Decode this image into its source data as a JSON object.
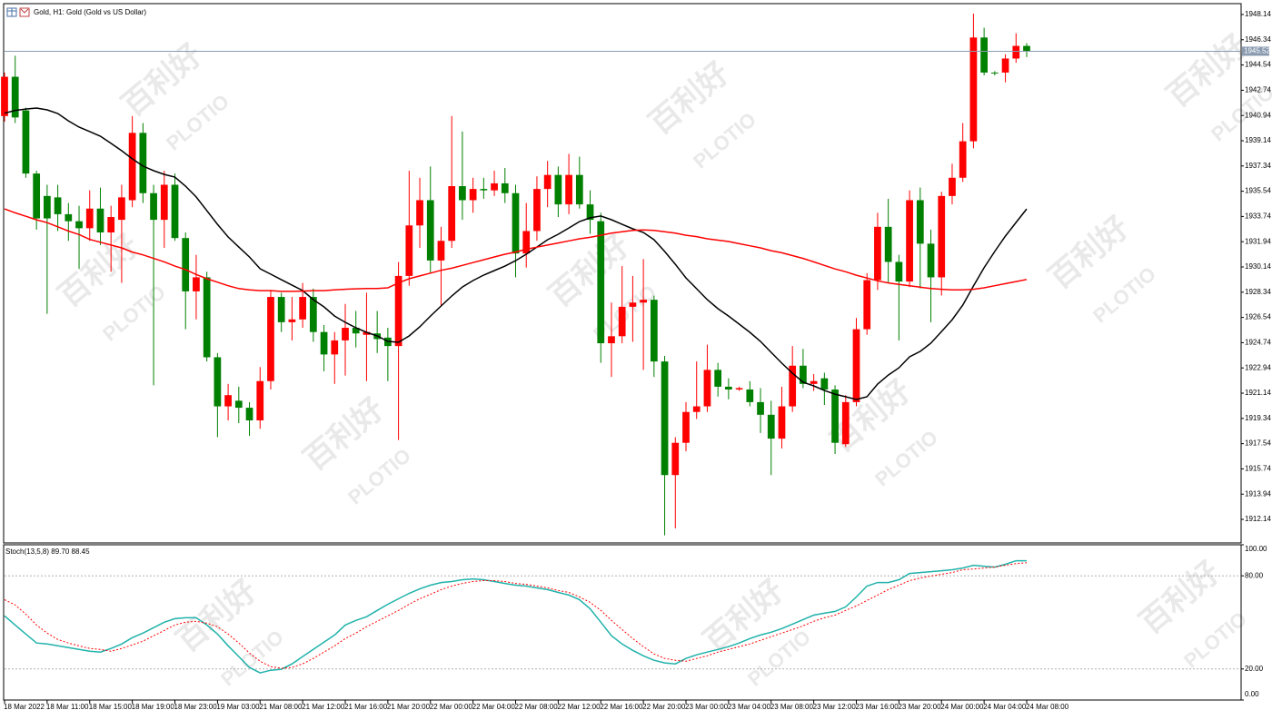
{
  "chart_data": [
    {
      "type": "candlestick",
      "title": "Gold, H1:  Gold (Gold vs US Dollar)",
      "watermark": [
        "百利好",
        "PLOTIO"
      ],
      "categories": [
        "18 Mar 2022",
        null,
        null,
        null,
        "18 Mar 11:00",
        null,
        null,
        null,
        "18 Mar 15:00",
        null,
        null,
        null,
        "18 Mar 19:00",
        null,
        null,
        null,
        "18 Mar 23:00",
        null,
        null,
        null,
        "19 Mar 03:00",
        null,
        null,
        null,
        "21 Mar 08:00",
        null,
        null,
        null,
        "21 Mar 12:00",
        null,
        null,
        null,
        "21 Mar 16:00",
        null,
        null,
        null,
        "21 Mar 20:00",
        null,
        null,
        null,
        "22 Mar 00:00",
        null,
        null,
        null,
        "22 Mar 04:00",
        null,
        null,
        null,
        "22 Mar 08:00",
        null,
        null,
        null,
        "22 Mar 12:00",
        null,
        null,
        null,
        "22 Mar 16:00",
        null,
        null,
        null,
        "22 Mar 20:00",
        null,
        null,
        null,
        "23 Mar 00:00",
        null,
        null,
        null,
        "23 Mar 04:00",
        null,
        null,
        null,
        "23 Mar 08:00",
        null,
        null,
        null,
        "23 Mar 12:00",
        null,
        null,
        null,
        "23 Mar 16:00",
        null,
        null,
        null,
        "23 Mar 20:00",
        null,
        null,
        null,
        "24 Mar 00:00",
        null,
        null,
        null,
        "24 Mar 04:00",
        null,
        null,
        null,
        "24 Mar 08:00"
      ],
      "open": [
        1940.9,
        1943.7,
        1941.3,
        1936.8,
        1935.2,
        1935.1,
        1933.9,
        1933.4,
        1932.9,
        1934.3,
        1932.6,
        1933.5,
        1934.9,
        1939.7,
        1935.4,
        1933.5,
        1936.0,
        1932.2,
        1928.4,
        1929.4,
        1923.7,
        1920.2,
        1920.6,
        1920.1,
        1919.2,
        1922.0,
        1928.0,
        1926.2,
        1926.4,
        1928.0,
        1925.5,
        1923.9,
        1924.9,
        1925.8,
        1925.3,
        1925.4,
        1925.1,
        1924.5,
        1929.5,
        1933.1,
        1934.9,
        1930.6,
        1932.0,
        1935.9,
        1934.9,
        1935.7,
        1935.6,
        1936.1,
        1935.4,
        1931.1,
        1932.7,
        1935.7,
        1936.7,
        1934.6,
        1936.7,
        1934.6,
        1933.4,
        1924.7,
        1925.2,
        1927.3,
        1927.6,
        1927.8,
        1923.4,
        1915.3,
        1917.6,
        1919.8,
        1920.2,
        1922.8,
        1921.6,
        1921.4,
        1921.4,
        1920.5,
        1919.6,
        1917.9,
        1920.2,
        1923.1,
        1921.8,
        1922.2,
        1921.4,
        1917.5,
        1920.5,
        1925.7,
        1929.2,
        1933.0,
        1930.5,
        1929.1,
        1934.9,
        1931.8,
        1929.4,
        1935.2,
        1936.5,
        1939.1,
        1946.5,
        1944.0,
        1944.0,
        1945.0,
        1945.9
      ],
      "high": [
        1944.0,
        1945.2,
        1941.5,
        1937.0,
        1936.0,
        1936.0,
        1934.7,
        1934.5,
        1935.6,
        1935.8,
        1934.5,
        1936.0,
        1940.9,
        1940.4,
        1936.0,
        1937.0,
        1936.8,
        1932.6,
        1931.0,
        1929.8,
        1924.0,
        1921.8,
        1921.6,
        1920.5,
        1923.0,
        1928.5,
        1928.3,
        1928.0,
        1929.0,
        1928.6,
        1926.0,
        1925.5,
        1927.5,
        1927.0,
        1928.3,
        1927.0,
        1925.8,
        1930.5,
        1937.0,
        1936.5,
        1937.3,
        1933.0,
        1940.9,
        1939.8,
        1936.5,
        1936.5,
        1937.0,
        1937.2,
        1936.0,
        1934.7,
        1936.6,
        1937.7,
        1937.3,
        1938.2,
        1938.0,
        1935.6,
        1934.0,
        1927.6,
        1930.2,
        1929.5,
        1930.7,
        1928.1,
        1923.8,
        1918.0,
        1920.5,
        1923.4,
        1924.6,
        1923.3,
        1922.2,
        1921.6,
        1922.0,
        1921.5,
        1920.6,
        1921.6,
        1924.5,
        1924.3,
        1922.5,
        1922.6,
        1921.7,
        1921.0,
        1926.5,
        1929.7,
        1934.0,
        1935.0,
        1931.0,
        1935.6,
        1935.8,
        1932.8,
        1935.5,
        1937.5,
        1940.4,
        1948.2,
        1947.2,
        1944.1,
        1945.3,
        1946.8,
        1946.1
      ],
      "low": [
        1940.5,
        1940.4,
        1936.5,
        1932.8,
        1926.8,
        1932.7,
        1932.0,
        1930.0,
        1932.0,
        1931.7,
        1929.8,
        1929.0,
        1934.4,
        1934.7,
        1921.7,
        1931.5,
        1932.0,
        1925.7,
        1926.4,
        1923.4,
        1918.0,
        1919.2,
        1919.0,
        1918.1,
        1918.6,
        1921.4,
        1925.5,
        1924.9,
        1925.8,
        1924.8,
        1922.7,
        1921.8,
        1922.4,
        1924.4,
        1922.0,
        1924.0,
        1922.0,
        1917.8,
        1928.8,
        1931.5,
        1929.7,
        1927.4,
        1931.5,
        1933.5,
        1934.0,
        1935.0,
        1935.2,
        1934.7,
        1929.4,
        1930.1,
        1932.0,
        1934.4,
        1933.7,
        1933.9,
        1934.3,
        1932.5,
        1923.3,
        1922.3,
        1924.7,
        1924.8,
        1922.8,
        1922.3,
        1911.0,
        1911.5,
        1917.0,
        1919.3,
        1919.8,
        1920.9,
        1920.7,
        1921.3,
        1920.2,
        1918.3,
        1915.3,
        1917.2,
        1919.8,
        1921.5,
        1921.3,
        1920.3,
        1916.8,
        1917.3,
        1920.2,
        1925.3,
        1928.5,
        1929.0,
        1924.9,
        1928.7,
        1928.6,
        1926.2,
        1928.1,
        1934.6,
        1936.2,
        1938.6,
        1943.8,
        1943.8,
        1943.3,
        1944.7,
        1945.1
      ],
      "close": [
        1943.7,
        1940.8,
        1936.8,
        1933.6,
        1933.6,
        1933.9,
        1933.4,
        1932.9,
        1934.3,
        1932.6,
        1933.7,
        1935.1,
        1939.7,
        1935.4,
        1933.5,
        1936.0,
        1932.2,
        1928.4,
        1929.4,
        1923.7,
        1920.2,
        1921.0,
        1920.1,
        1919.2,
        1922.0,
        1928.0,
        1926.2,
        1926.4,
        1928.0,
        1925.5,
        1923.9,
        1924.9,
        1925.8,
        1925.4,
        1925.5,
        1925.0,
        1924.5,
        1929.5,
        1933.1,
        1934.9,
        1930.6,
        1932.0,
        1935.9,
        1934.9,
        1935.7,
        1935.6,
        1936.1,
        1935.4,
        1931.1,
        1932.7,
        1935.7,
        1936.7,
        1934.6,
        1936.7,
        1934.6,
        1933.5,
        1924.7,
        1925.2,
        1927.3,
        1927.6,
        1927.8,
        1923.4,
        1915.3,
        1917.6,
        1919.8,
        1920.2,
        1922.8,
        1921.6,
        1921.4,
        1921.5,
        1920.5,
        1919.6,
        1917.9,
        1920.2,
        1923.1,
        1921.8,
        1922.0,
        1921.4,
        1917.6,
        1920.5,
        1925.7,
        1929.2,
        1933.0,
        1930.5,
        1929.1,
        1934.9,
        1931.8,
        1929.4,
        1935.2,
        1936.5,
        1939.1,
        1946.5,
        1944.0,
        1943.95,
        1945.0,
        1945.9,
        1945.52
      ],
      "up_color": "#ff0000",
      "down_color": "#008000",
      "series": [
        {
          "color": "#000000",
          "values": [
            1941.1,
            1941.3,
            1941.4,
            1941.47,
            1941.34,
            1941.08,
            1940.56,
            1940.11,
            1939.79,
            1939.46,
            1938.95,
            1938.43,
            1937.85,
            1937.33,
            1937.0,
            1936.74,
            1936.55,
            1935.9,
            1935.13,
            1934.15,
            1933.18,
            1932.28,
            1931.56,
            1930.85,
            1930.01,
            1929.62,
            1929.23,
            1928.84,
            1928.46,
            1927.81,
            1927.29,
            1926.64,
            1926.19,
            1925.8,
            1925.48,
            1925.22,
            1924.83,
            1924.77,
            1925.22,
            1925.87,
            1926.64,
            1927.36,
            1928.07,
            1928.71,
            1929.17,
            1929.56,
            1929.88,
            1930.2,
            1930.59,
            1931.05,
            1931.56,
            1932.08,
            1932.47,
            1932.92,
            1933.38,
            1933.64,
            1933.77,
            1933.51,
            1933.18,
            1932.86,
            1932.6,
            1932.08,
            1931.24,
            1930.33,
            1929.36,
            1928.59,
            1927.81,
            1927.16,
            1926.64,
            1926.06,
            1925.48,
            1924.83,
            1924.05,
            1923.28,
            1922.56,
            1921.92,
            1921.66,
            1921.33,
            1921.07,
            1920.88,
            1920.69,
            1920.88,
            1921.79,
            1922.43,
            1922.95,
            1923.73,
            1924.12,
            1924.7,
            1925.54,
            1926.38,
            1927.42,
            1928.78,
            1930.08,
            1931.24,
            1932.34,
            1933.31,
            1934.28
          ]
        },
        {
          "color": "#ff0000",
          "values": [
            1934.28,
            1934.0,
            1933.75,
            1933.5,
            1933.3,
            1933.0,
            1932.7,
            1932.45,
            1932.1,
            1931.9,
            1931.7,
            1931.5,
            1931.2,
            1931.0,
            1930.75,
            1930.5,
            1930.2,
            1929.95,
            1929.6,
            1929.3,
            1929.05,
            1928.8,
            1928.6,
            1928.5,
            1928.45,
            1928.45,
            1928.4,
            1928.4,
            1928.42,
            1928.45,
            1928.45,
            1928.5,
            1928.55,
            1928.58,
            1928.6,
            1928.6,
            1928.65,
            1929.0,
            1929.3,
            1929.5,
            1929.7,
            1929.9,
            1930.05,
            1930.25,
            1930.45,
            1930.65,
            1930.85,
            1931.05,
            1931.2,
            1931.4,
            1931.55,
            1931.7,
            1931.85,
            1932.0,
            1932.15,
            1932.25,
            1932.4,
            1932.55,
            1932.65,
            1932.75,
            1932.78,
            1932.75,
            1932.65,
            1932.55,
            1932.4,
            1932.3,
            1932.15,
            1932.05,
            1931.95,
            1931.8,
            1931.65,
            1931.5,
            1931.3,
            1931.15,
            1930.95,
            1930.75,
            1930.5,
            1930.25,
            1930.0,
            1929.8,
            1929.55,
            1929.35,
            1929.15,
            1929.0,
            1928.9,
            1928.8,
            1928.7,
            1928.6,
            1928.55,
            1928.5,
            1928.5,
            1928.55,
            1928.65,
            1928.8,
            1928.95,
            1929.1,
            1929.25
          ]
        }
      ],
      "price_line": 1945.52,
      "ylim": [
        1910.46,
        1948.85
      ],
      "yticks": [
        1912.14,
        1913.94,
        1915.74,
        1917.54,
        1919.34,
        1921.14,
        1922.94,
        1924.74,
        1926.54,
        1928.34,
        1930.14,
        1931.94,
        1933.74,
        1935.54,
        1937.34,
        1939.14,
        1940.94,
        1942.74,
        1944.54,
        1946.34,
        1948.14
      ],
      "grid": false
    },
    {
      "type": "line",
      "title": "Stoch(13,5,8) 89.70 88.45",
      "series": [
        {
          "color": "#20b2aa",
          "values": [
            54.2,
            48.3,
            42.5,
            36.7,
            36.1,
            34.9,
            33.8,
            32.6,
            31.4,
            30.9,
            33.2,
            36.1,
            40.2,
            43.1,
            46.6,
            50.1,
            52.4,
            53.0,
            53.0,
            48.3,
            42.5,
            34.9,
            28.0,
            21.0,
            17.5,
            19.2,
            19.8,
            23.3,
            28.0,
            32.6,
            37.3,
            41.9,
            48.3,
            51.3,
            53.6,
            57.7,
            61.7,
            65.2,
            68.7,
            71.6,
            74.0,
            75.7,
            76.3,
            77.5,
            78.0,
            77.5,
            76.3,
            75.1,
            74.0,
            73.4,
            72.2,
            71.1,
            69.3,
            67.6,
            64.6,
            58.8,
            50.1,
            41.4,
            36.1,
            32.0,
            28.5,
            25.6,
            23.9,
            23.3,
            26.8,
            29.1,
            30.9,
            32.6,
            34.4,
            36.7,
            39.6,
            41.9,
            43.7,
            46.0,
            48.9,
            51.8,
            54.7,
            55.9,
            57.1,
            60.0,
            66.4,
            73.4,
            75.7,
            75.7,
            77.5,
            81.5,
            82.1,
            82.7,
            83.3,
            83.9,
            85.0,
            86.8,
            86.2,
            85.6,
            87.4,
            89.7,
            89.7
          ]
        },
        {
          "color": "#ff0000",
          "dashed": true,
          "values": [
            64.6,
            61.2,
            55.3,
            48.3,
            43.1,
            39.0,
            36.7,
            34.9,
            33.2,
            32.6,
            31.4,
            33.2,
            35.5,
            37.9,
            41.4,
            44.8,
            48.3,
            50.1,
            50.7,
            49.5,
            47.2,
            42.5,
            36.7,
            30.3,
            25.0,
            21.5,
            20.4,
            21.0,
            23.3,
            26.8,
            30.9,
            34.9,
            39.6,
            43.1,
            47.2,
            50.7,
            54.2,
            57.7,
            61.7,
            65.2,
            68.1,
            71.1,
            73.4,
            75.1,
            76.3,
            76.9,
            76.9,
            76.3,
            75.1,
            74.5,
            73.4,
            72.2,
            70.5,
            69.3,
            66.4,
            62.9,
            57.7,
            51.3,
            45.4,
            39.6,
            34.4,
            29.7,
            26.8,
            25.6,
            25.0,
            26.8,
            28.5,
            30.9,
            32.6,
            34.4,
            36.1,
            38.4,
            40.8,
            43.1,
            45.4,
            47.8,
            50.7,
            53.0,
            54.7,
            57.7,
            60.6,
            64.1,
            67.6,
            71.1,
            74.0,
            76.9,
            78.6,
            79.8,
            81.0,
            82.1,
            83.9,
            84.4,
            85.0,
            85.6,
            86.8,
            87.9,
            88.45
          ]
        }
      ],
      "ylim": [
        0,
        100
      ],
      "yticks": [
        {
          "value": 100,
          "label": "100.00"
        },
        {
          "value": 80,
          "label": "80.00"
        },
        {
          "value": 20,
          "label": "20.00"
        },
        {
          "value": 0,
          "label": "0.00"
        }
      ],
      "grid": true
    }
  ]
}
